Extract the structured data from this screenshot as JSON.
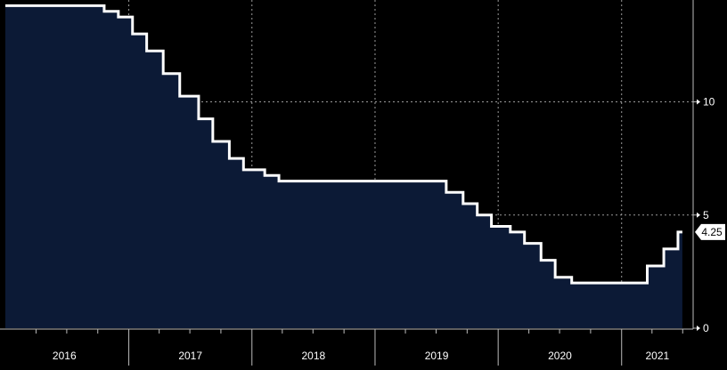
{
  "chart_data": {
    "type": "area",
    "x_axis": {
      "labels": [
        "2016",
        "2017",
        "2018",
        "2019",
        "2020",
        "2021"
      ],
      "range": [
        "2016-01-01",
        "2021-08-01"
      ]
    },
    "y_axis": {
      "ticks": [
        0,
        5,
        10
      ],
      "range": [
        0,
        14.5
      ],
      "position": "right"
    },
    "grid": true,
    "last_value_label": "4.25",
    "colors": {
      "background": "#000000",
      "line": "#ffffff",
      "fill": "#0c1a36",
      "grid": "#9a9a9a"
    },
    "series": [
      {
        "type": "step",
        "points": [
          [
            "2016-01-01",
            14.25
          ],
          [
            "2016-10-20",
            14.0
          ],
          [
            "2016-12-01",
            13.75
          ],
          [
            "2017-01-12",
            13.0
          ],
          [
            "2017-02-23",
            12.25
          ],
          [
            "2017-04-13",
            11.25
          ],
          [
            "2017-06-01",
            10.25
          ],
          [
            "2017-07-27",
            9.25
          ],
          [
            "2017-09-07",
            8.25
          ],
          [
            "2017-10-26",
            7.5
          ],
          [
            "2017-12-07",
            7.0
          ],
          [
            "2018-02-08",
            6.75
          ],
          [
            "2018-03-22",
            6.5
          ],
          [
            "2019-07-31",
            6.0
          ],
          [
            "2019-09-19",
            5.5
          ],
          [
            "2019-10-31",
            5.0
          ],
          [
            "2019-12-12",
            4.5
          ],
          [
            "2020-02-06",
            4.25
          ],
          [
            "2020-03-19",
            3.75
          ],
          [
            "2020-05-07",
            3.0
          ],
          [
            "2020-06-18",
            2.25
          ],
          [
            "2020-08-06",
            2.0
          ],
          [
            "2021-03-18",
            2.75
          ],
          [
            "2021-05-06",
            3.5
          ],
          [
            "2021-06-17",
            4.25
          ],
          [
            "2021-06-30",
            4.25
          ]
        ]
      }
    ]
  }
}
